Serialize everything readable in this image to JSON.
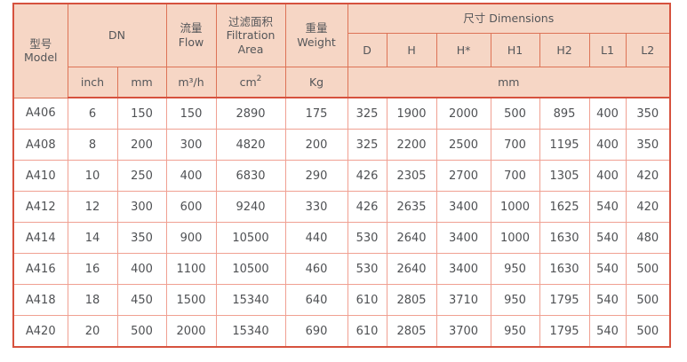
{
  "colors": {
    "header_bg": "#f6d6c5",
    "outer_border": "#d6523e",
    "header_grid": "#dd7356",
    "body_grid": "#f0a092",
    "text": "#545659"
  },
  "table": {
    "header": {
      "model_zh": "型号",
      "model_en": "Model",
      "dn": "DN",
      "flow_zh": "流量",
      "flow_en": "Flow",
      "area_zh": "过滤面积",
      "area_en_line1": "Filtration",
      "area_en_line2": "Area",
      "weight_zh": "重量",
      "weight_en": "Weight",
      "dimensions": "尺寸 Dimensions",
      "dim_cols": [
        "D",
        "H",
        "H*",
        "H1",
        "H2",
        "L1",
        "L2"
      ],
      "unit_inch": "inch",
      "unit_mm": "mm",
      "unit_flow_base": "m³/h",
      "unit_area_base": "cm",
      "unit_area_sup": "2",
      "unit_weight": "Kg",
      "unit_dims": "mm"
    },
    "rows": [
      [
        "A406",
        "6",
        "150",
        "150",
        "2890",
        "175",
        "325",
        "1900",
        "2000",
        "500",
        "895",
        "400",
        "350"
      ],
      [
        "A408",
        "8",
        "200",
        "300",
        "4820",
        "200",
        "325",
        "2200",
        "2500",
        "700",
        "1195",
        "400",
        "350"
      ],
      [
        "A410",
        "10",
        "250",
        "400",
        "6830",
        "290",
        "426",
        "2305",
        "2700",
        "700",
        "1305",
        "400",
        "420"
      ],
      [
        "A412",
        "12",
        "300",
        "600",
        "9240",
        "330",
        "426",
        "2635",
        "3400",
        "1000",
        "1625",
        "540",
        "420"
      ],
      [
        "A414",
        "14",
        "350",
        "900",
        "10500",
        "440",
        "530",
        "2640",
        "3400",
        "1000",
        "1630",
        "540",
        "480"
      ],
      [
        "A416",
        "16",
        "400",
        "1100",
        "10500",
        "460",
        "530",
        "2640",
        "3400",
        "950",
        "1630",
        "540",
        "500"
      ],
      [
        "A418",
        "18",
        "450",
        "1500",
        "15340",
        "640",
        "610",
        "2805",
        "3710",
        "950",
        "1795",
        "540",
        "500"
      ],
      [
        "A420",
        "20",
        "500",
        "2000",
        "15340",
        "690",
        "610",
        "2805",
        "3700",
        "950",
        "1795",
        "540",
        "500"
      ]
    ]
  }
}
